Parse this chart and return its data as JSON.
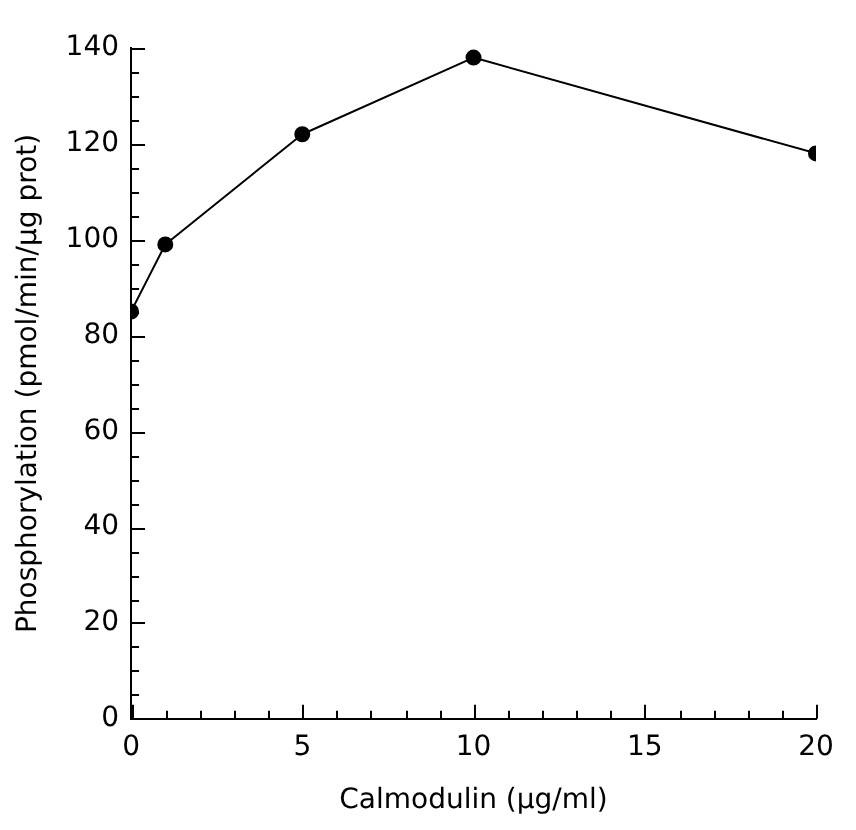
{
  "chart_data": {
    "type": "line",
    "xlabel": "Calmodulin (µg/ml)",
    "ylabel": "Phosphorylation (pmol/min/µg prot)",
    "x": [
      0,
      1,
      5,
      10,
      20
    ],
    "series": [
      {
        "color": "#000000",
        "values": [
          85,
          99,
          122,
          138,
          118
        ]
      }
    ],
    "xlim": [
      0,
      20
    ],
    "xticks": [
      0,
      {
        "value": 1,
        "label": null
      },
      {
        "value": 2,
        "label": null
      },
      {
        "value": 3,
        "label": null
      },
      {
        "value": 4,
        "label": null
      },
      5,
      {
        "value": 6,
        "label": null
      },
      {
        "value": 7,
        "label": null
      },
      {
        "value": 8,
        "label": null
      },
      {
        "value": 9,
        "label": null
      },
      10,
      {
        "value": 11,
        "label": null
      },
      {
        "value": 12,
        "label": null
      },
      {
        "value": 13,
        "label": null
      },
      {
        "value": 14,
        "label": null
      },
      15,
      {
        "value": 16,
        "label": null
      },
      {
        "value": 17,
        "label": null
      },
      {
        "value": 18,
        "label": null
      },
      {
        "value": 19,
        "label": null
      },
      20
    ],
    "ylim": [
      0,
      140
    ],
    "yticks": [
      0,
      {
        "value": 5,
        "label": null
      },
      {
        "value": 10,
        "label": null
      },
      {
        "value": 15,
        "label": null
      },
      20,
      {
        "value": 25,
        "label": null
      },
      {
        "value": 30,
        "label": null
      },
      {
        "value": 35,
        "label": null
      },
      40,
      {
        "value": 45,
        "label": null
      },
      {
        "value": 50,
        "label": null
      },
      {
        "value": 55,
        "label": null
      },
      60,
      {
        "value": 65,
        "label": null
      },
      {
        "value": 70,
        "label": null
      },
      {
        "value": 75,
        "label": null
      },
      80,
      {
        "value": 85,
        "label": null
      },
      {
        "value": 90,
        "label": null
      },
      {
        "value": 95,
        "label": null
      },
      100,
      {
        "value": 105,
        "label": null
      },
      {
        "value": 110,
        "label": null
      },
      {
        "value": 115,
        "label": null
      },
      120,
      {
        "value": 125,
        "label": null
      },
      {
        "value": 130,
        "label": null
      },
      {
        "value": 135,
        "label": null
      },
      140
    ],
    "grid": false,
    "legend": false,
    "marker": "circle",
    "line_style": "solid"
  }
}
